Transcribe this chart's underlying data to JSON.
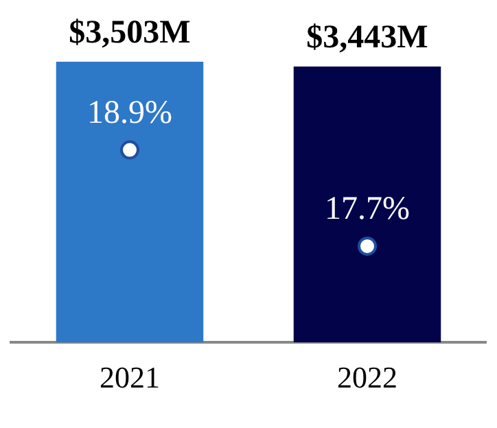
{
  "chart_data": {
    "type": "bar",
    "categories": [
      "2021",
      "2022"
    ],
    "series": [
      {
        "values": [
          3503,
          3443
        ],
        "colors": [
          "#2e78c8",
          "#03034a"
        ],
        "value_labels": [
          "$3,503M",
          "$3,443M"
        ]
      },
      {
        "type": "scatter",
        "axis": "y2",
        "values": [
          18.9,
          17.7
        ],
        "color": "#ffffff",
        "value_labels": [
          "18.9%",
          "17.7%"
        ]
      }
    ],
    "marker": "circle",
    "legend": false,
    "grid": false,
    "tick_labels": "x"
  }
}
